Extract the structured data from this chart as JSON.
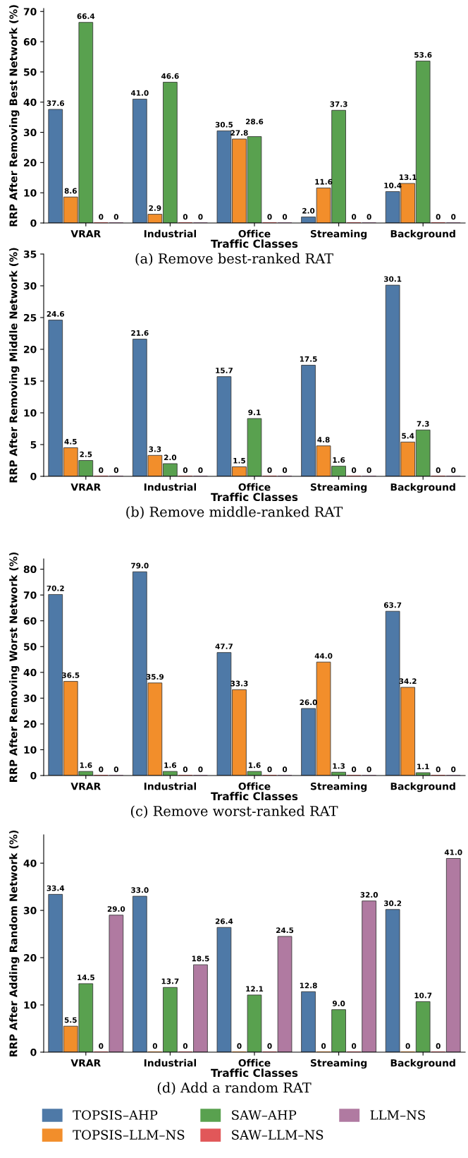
{
  "chart_data": [
    {
      "type": "bar",
      "xlabel": "Traffic Classes",
      "ylabel": "RRP After Removing Best Network (%)",
      "categories": [
        "VRAR",
        "Industrial",
        "Office",
        "Streaming",
        "Background"
      ],
      "ylim": [
        0,
        71
      ],
      "yticks": [
        0,
        10,
        20,
        30,
        40,
        50,
        60,
        70
      ],
      "grid": false,
      "annotations": [
        "(a) Remove best-ranked RAT"
      ],
      "series": [
        {
          "color": "#4e79a7",
          "values": [
            37.6,
            41.0,
            30.5,
            2.0,
            10.4
          ],
          "value_labels": [
            "37.6",
            "41.0",
            "30.5",
            "2.0",
            "10.4"
          ]
        },
        {
          "color": "#f28e2b",
          "values": [
            8.6,
            2.9,
            27.8,
            11.6,
            13.1
          ],
          "value_labels": [
            "8.6",
            "2.9",
            "27.8",
            "11.6",
            "13.1"
          ]
        },
        {
          "color": "#59a14f",
          "values": [
            66.4,
            46.6,
            28.6,
            37.3,
            53.6
          ],
          "value_labels": [
            "66.4",
            "46.6",
            "28.6",
            "37.3",
            "53.6"
          ]
        },
        {
          "color": "#e15759",
          "values": [
            0,
            0,
            0,
            0,
            0
          ],
          "value_labels": [
            "0",
            "0",
            "0",
            "0",
            "0"
          ]
        },
        {
          "color": "#b07aa1",
          "values": [
            0,
            0,
            0,
            0,
            0
          ],
          "value_labels": [
            "0",
            "0",
            "0",
            "0",
            "0"
          ]
        }
      ]
    },
    {
      "type": "bar",
      "xlabel": "Traffic Classes",
      "ylabel": "RRP After Removing Middle Network (%)",
      "categories": [
        "VRAR",
        "Industrial",
        "Office",
        "Streaming",
        "Background"
      ],
      "ylim": [
        0,
        35
      ],
      "yticks": [
        0,
        5,
        10,
        15,
        20,
        25,
        30,
        35
      ],
      "grid": false,
      "annotations": [
        "(b) Remove middle-ranked RAT"
      ],
      "series": [
        {
          "color": "#4e79a7",
          "values": [
            24.6,
            21.6,
            15.7,
            17.5,
            30.1
          ],
          "value_labels": [
            "24.6",
            "21.6",
            "15.7",
            "17.5",
            "30.1"
          ]
        },
        {
          "color": "#f28e2b",
          "values": [
            4.5,
            3.3,
            1.5,
            4.8,
            5.4
          ],
          "value_labels": [
            "4.5",
            "3.3",
            "1.5",
            "4.8",
            "5.4"
          ]
        },
        {
          "color": "#59a14f",
          "values": [
            2.5,
            2.0,
            9.1,
            1.6,
            7.3
          ],
          "value_labels": [
            "2.5",
            "2.0",
            "9.1",
            "1.6",
            "7.3"
          ]
        },
        {
          "color": "#e15759",
          "values": [
            0,
            0,
            0,
            0,
            0
          ],
          "value_labels": [
            "0",
            "0",
            "0",
            "0",
            "0"
          ]
        },
        {
          "color": "#b07aa1",
          "values": [
            0,
            0,
            0,
            0,
            0
          ],
          "value_labels": [
            "0",
            "0",
            "0",
            "0",
            "0"
          ]
        }
      ]
    },
    {
      "type": "bar",
      "xlabel": "Traffic Classes",
      "ylabel": "RRP After Removing Worst Network (%)",
      "categories": [
        "VRAR",
        "Industrial",
        "Office",
        "Streaming",
        "Background"
      ],
      "ylim": [
        0,
        84
      ],
      "yticks": [
        0,
        10,
        20,
        30,
        40,
        50,
        60,
        70,
        80
      ],
      "grid": false,
      "annotations": [
        "(c) Remove worst-ranked RAT"
      ],
      "series": [
        {
          "color": "#4e79a7",
          "values": [
            70.2,
            79.0,
            47.7,
            26.0,
            63.7
          ],
          "value_labels": [
            "70.2",
            "79.0",
            "47.7",
            "26.0",
            "63.7"
          ]
        },
        {
          "color": "#f28e2b",
          "values": [
            36.5,
            35.9,
            33.3,
            44.0,
            34.2
          ],
          "value_labels": [
            "36.5",
            "35.9",
            "33.3",
            "44.0",
            "34.2"
          ]
        },
        {
          "color": "#59a14f",
          "values": [
            1.6,
            1.6,
            1.6,
            1.3,
            1.1
          ],
          "value_labels": [
            "1.6",
            "1.6",
            "1.6",
            "1.3",
            "1.1"
          ]
        },
        {
          "color": "#e15759",
          "values": [
            0,
            0,
            0,
            0,
            0
          ],
          "value_labels": [
            "0",
            "0",
            "0",
            "0",
            "0"
          ]
        },
        {
          "color": "#b07aa1",
          "values": [
            0,
            0,
            0,
            0,
            0
          ],
          "value_labels": [
            "0",
            "0",
            "0",
            "0",
            "0"
          ]
        }
      ]
    },
    {
      "type": "bar",
      "xlabel": "Traffic Classes",
      "ylabel": "RRP After Adding Random Network (%)",
      "categories": [
        "VRAR",
        "Industrial",
        "Office",
        "Streaming",
        "Background"
      ],
      "ylim": [
        0,
        46
      ],
      "yticks": [
        0,
        10,
        20,
        30,
        40
      ],
      "grid": false,
      "legend": "bottom",
      "annotations": [
        "(d) Add a random RAT"
      ],
      "series": [
        {
          "name": "TOPSIS–AHP",
          "color": "#4e79a7",
          "values": [
            33.4,
            33.0,
            26.4,
            12.8,
            30.2
          ],
          "value_labels": [
            "33.4",
            "33.0",
            "26.4",
            "12.8",
            "30.2"
          ]
        },
        {
          "name": "TOPSIS–LLM–NS",
          "color": "#f28e2b",
          "values": [
            5.5,
            0,
            0,
            0,
            0
          ],
          "value_labels": [
            "5.5",
            "0",
            "0",
            "0",
            "0"
          ]
        },
        {
          "name": "SAW–AHP",
          "color": "#59a14f",
          "values": [
            14.5,
            13.7,
            12.1,
            9.0,
            10.7
          ],
          "value_labels": [
            "14.5",
            "13.7",
            "12.1",
            "9.0",
            "10.7"
          ]
        },
        {
          "name": "SAW–LLM–NS",
          "color": "#e15759",
          "values": [
            0,
            0,
            0,
            0,
            0
          ],
          "value_labels": [
            "0",
            "0",
            "0",
            "0",
            "0"
          ]
        },
        {
          "name": "LLM–NS",
          "color": "#b07aa1",
          "values": [
            29.0,
            18.5,
            24.5,
            32.0,
            41.0
          ],
          "value_labels": [
            "29.0",
            "18.5",
            "24.5",
            "32.0",
            "41.0"
          ]
        }
      ]
    }
  ]
}
